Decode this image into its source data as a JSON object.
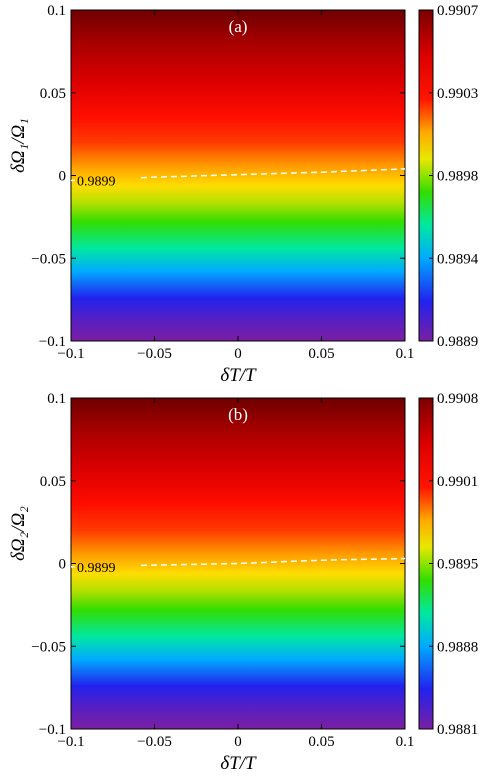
{
  "chart_data": [
    {
      "type": "heatmap",
      "panel_label": "(a)",
      "xlabel": "δT/T",
      "ylabel": "δΩ₁/Ω₁",
      "xlim": [
        -0.1,
        0.1
      ],
      "ylim": [
        -0.1,
        0.1
      ],
      "xticks": [
        "−0.1",
        "−0.05",
        "0",
        "0.05",
        "0.1"
      ],
      "yticks": [
        "−0.1",
        "−0.05",
        "0",
        "0.05",
        "0.1"
      ],
      "colorbar": {
        "min": 0.9889,
        "max": 0.9907,
        "ticks": [
          "0.9889",
          "0.9894",
          "0.9898",
          "0.9903",
          "0.9907"
        ]
      },
      "contour": {
        "value": 0.9899,
        "label": "0.9899",
        "x": [
          -0.1,
          -0.05,
          0,
          0.05,
          0.1
        ],
        "y": [
          -0.003,
          -0.001,
          0.0005,
          0.002,
          0.004
        ]
      },
      "grid": false
    },
    {
      "type": "heatmap",
      "panel_label": "(b)",
      "xlabel": "δT/T",
      "ylabel": "δΩ₂/Ω₂",
      "xlim": [
        -0.1,
        0.1
      ],
      "ylim": [
        -0.1,
        0.1
      ],
      "xticks": [
        "−0.1",
        "−0.05",
        "0",
        "0.05",
        "0.1"
      ],
      "yticks": [
        "−0.1",
        "−0.05",
        "0",
        "0.05",
        "0.1"
      ],
      "colorbar": {
        "min": 0.9881,
        "max": 0.9908,
        "ticks": [
          "0.9881",
          "0.9888",
          "0.9895",
          "0.9901",
          "0.9908"
        ]
      },
      "contour": {
        "value": 0.9899,
        "label": "0.9899",
        "x": [
          -0.1,
          -0.05,
          0,
          0.05,
          0.1
        ],
        "y": [
          -0.002,
          -0.001,
          0.0,
          0.002,
          0.003
        ]
      },
      "grid": false
    }
  ],
  "colors": {
    "colormap": [
      "#7a1fa2",
      "#2222ee",
      "#00aaff",
      "#00e8a0",
      "#33dd00",
      "#e8e800",
      "#ffaa00",
      "#ff1500",
      "#dd0000",
      "#7a0000"
    ],
    "contour_line": "#ffffff"
  }
}
